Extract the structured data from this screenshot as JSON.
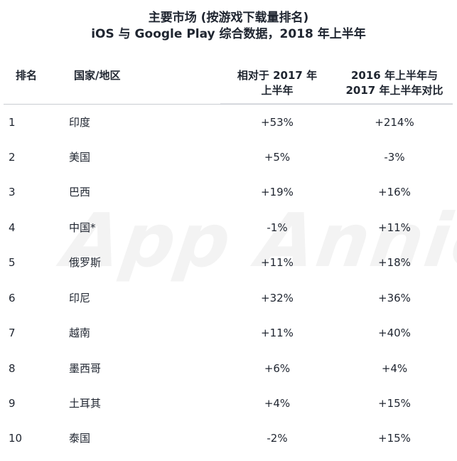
{
  "title": {
    "line1": "主要市场 (按游戏下载量排名)",
    "line2": "iOS 与 Google Play 综合数据，2018 年上半年"
  },
  "watermark": "App Annie",
  "headers": {
    "rank": "排名",
    "country": "国家/地区",
    "col1_line1": "相对于 2017 年",
    "col1_line2": "上半年",
    "col2_line1": "2016 年上半年与",
    "col2_line2": "2017 年上半年对比"
  },
  "rows": [
    {
      "rank": "1",
      "country": "印度",
      "v1": "+53%",
      "v2": "+214%"
    },
    {
      "rank": "2",
      "country": "美国",
      "v1": "+5%",
      "v2": "-3%"
    },
    {
      "rank": "3",
      "country": "巴西",
      "v1": "+19%",
      "v2": "+16%"
    },
    {
      "rank": "4",
      "country": "中国*",
      "v1": "-1%",
      "v2": "+11%"
    },
    {
      "rank": "5",
      "country": "俄罗斯",
      "v1": "+11%",
      "v2": "+18%"
    },
    {
      "rank": "6",
      "country": "印尼",
      "v1": "+32%",
      "v2": "+36%"
    },
    {
      "rank": "7",
      "country": "越南",
      "v1": "+11%",
      "v2": "+40%"
    },
    {
      "rank": "8",
      "country": "墨西哥",
      "v1": "+6%",
      "v2": "+4%"
    },
    {
      "rank": "9",
      "country": "土耳其",
      "v1": "+4%",
      "v2": "+15%"
    },
    {
      "rank": "10",
      "country": "泰国",
      "v1": "-2%",
      "v2": "+15%"
    }
  ]
}
